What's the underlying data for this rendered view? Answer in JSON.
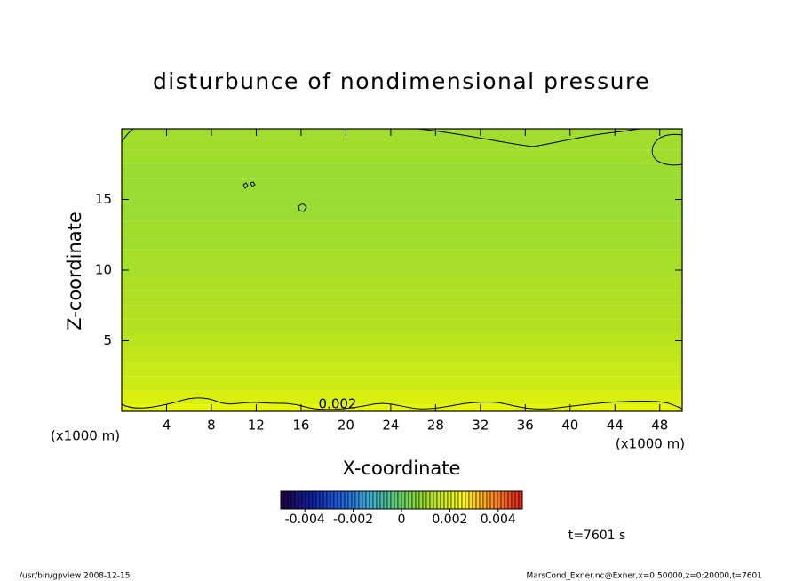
{
  "chart_data": {
    "type": "contour",
    "title": "disturbunce of nondimensional pressure",
    "x_label": "X-coordinate",
    "y_label": "Z-coordinate",
    "x_unit": "(x1000 m)",
    "y_unit": "(x1000 m)",
    "xlim": [
      0,
      50
    ],
    "xticks": [
      4,
      8,
      12,
      16,
      20,
      24,
      28,
      32,
      36,
      40,
      44,
      48
    ],
    "ylim": [
      0,
      20
    ],
    "yticks": [
      5,
      10,
      15
    ],
    "field": {
      "z": [
        0,
        1,
        2,
        3,
        4,
        5,
        6,
        7,
        8,
        9,
        10,
        11,
        12,
        13,
        14,
        15,
        16,
        17,
        18,
        19,
        20
      ],
      "values": [
        0.0021,
        0.0019,
        0.0017,
        0.0016,
        0.0015,
        0.0014,
        0.0013,
        0.0013,
        0.0012,
        0.0012,
        0.0011,
        0.0011,
        0.001,
        0.001,
        0.0009,
        0.0009,
        0.0009,
        0.0009,
        0.001,
        0.001,
        0.001
      ]
    },
    "contour_label": 0.002,
    "colorbar": {
      "lim": [
        -0.005,
        0.005
      ],
      "ticks": [
        -0.004,
        -0.002,
        0,
        0.002,
        0.004
      ],
      "colors": [
        "#200040",
        "#1020a0",
        "#2060e0",
        "#40b0d0",
        "#60d060",
        "#b0e020",
        "#ffff00",
        "#ff9020",
        "#e02020"
      ]
    },
    "annotation": "t=7601 s",
    "footer_left": "/usr/bin/gpview   2008-12-15",
    "footer_right": "MarsCond_Exner.nc@Exner,x=0:50000,z=0:20000,t=7601"
  }
}
